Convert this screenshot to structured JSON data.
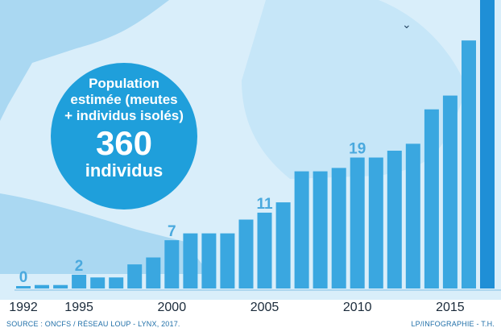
{
  "chart_data": {
    "type": "bar",
    "title": "",
    "xlabel": "",
    "ylabel": "",
    "years": [
      1992,
      1993,
      1994,
      1995,
      1996,
      1997,
      1998,
      1999,
      2000,
      2001,
      2002,
      2003,
      2004,
      2005,
      2006,
      2007,
      2008,
      2009,
      2010,
      2011,
      2012,
      2013,
      2014,
      2015,
      2016,
      2017
    ],
    "values": [
      0,
      0.5,
      0.5,
      2,
      1.6,
      1.6,
      3.5,
      4.5,
      7,
      8,
      8,
      8,
      10,
      11,
      12.5,
      17,
      17,
      17.5,
      19,
      19,
      20,
      21,
      26,
      28,
      36,
      42
    ],
    "x_ticks": [
      "1992",
      "1995",
      "2000",
      "2005",
      "2010",
      "2015"
    ],
    "value_labels": [
      {
        "year": 1992,
        "text": "0"
      },
      {
        "year": 1995,
        "text": "2"
      },
      {
        "year": 2000,
        "text": "7"
      },
      {
        "year": 2005,
        "text": "11"
      },
      {
        "year": 2010,
        "text": "19"
      }
    ],
    "colors": {
      "bar": "#3aa7e0",
      "highlight": "#1f8fd6",
      "label": "#4aa9de",
      "background": "#d9eefa",
      "shape": "#9fd2f0"
    }
  },
  "callout": {
    "caption_line1": "Population",
    "caption_line2": "estimée (meutes",
    "caption_line3": "+ individus isolés)",
    "number": "360",
    "unit": "individus"
  },
  "footer": {
    "source": "SOURCE : ONCFS / RÉSEAU LOUP - LYNX, 2017.",
    "credit": "LP/INFOGRAPHIE - T.H."
  },
  "decor": {
    "chevron_icon": "chevron-down-icon"
  }
}
